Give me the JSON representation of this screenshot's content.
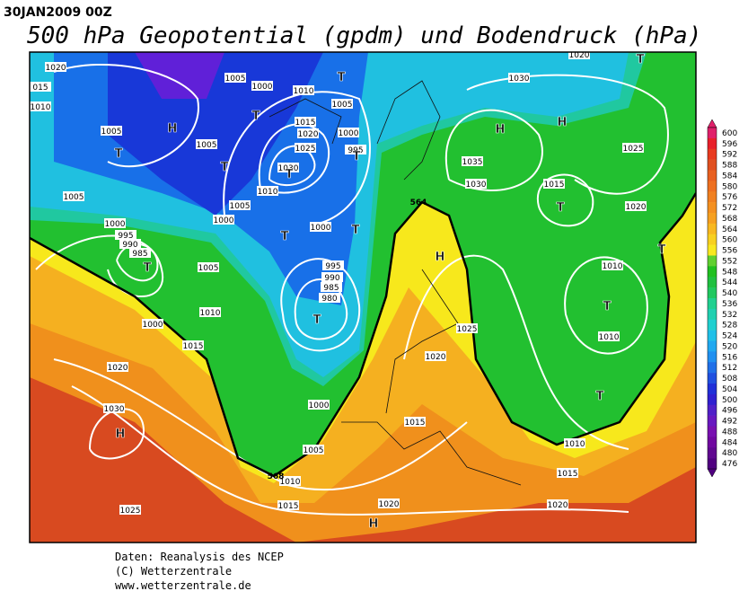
{
  "header": {
    "date": "30JAN2009 00Z",
    "title": "500 hPa Geopotential (gpdm) und Bodendruck (hPa)"
  },
  "map": {
    "pressure_labels": [
      "1020",
      "015",
      "1010",
      "1005",
      "1000",
      "1010",
      "1005",
      "1015",
      "1020",
      "1000",
      "1025",
      "995",
      "1005",
      "1005",
      "1030",
      "1010",
      "1005",
      "1005",
      "1000",
      "1000",
      "1000",
      "995",
      "990",
      "985",
      "1005",
      "995",
      "990",
      "985",
      "980",
      "1010",
      "1000",
      "1015",
      "1020",
      "1000",
      "1030",
      "1005",
      "1010",
      "1015",
      "1025",
      "1020",
      "1015",
      "1025",
      "1020",
      "1030",
      "1035",
      "1030",
      "1015",
      "1025",
      "1020",
      "1010",
      "1010",
      "1010",
      "1015",
      "1020",
      "1020"
    ],
    "contour_labels": [
      "564",
      "568"
    ],
    "centers": [
      "H",
      "T",
      "T",
      "T",
      "T",
      "T",
      "T",
      "T",
      "T",
      "T",
      "T",
      "H",
      "H",
      "H",
      "T",
      "T",
      "T",
      "T",
      "H",
      "H",
      "T"
    ]
  },
  "colorbar": {
    "levels": [
      600,
      596,
      592,
      588,
      584,
      580,
      576,
      572,
      568,
      564,
      560,
      556,
      552,
      548,
      544,
      540,
      536,
      532,
      528,
      524,
      520,
      516,
      512,
      508,
      504,
      500,
      496,
      492,
      488,
      484,
      480,
      476
    ],
    "colors": [
      "#e0206a",
      "#e8202a",
      "#e83a20",
      "#e05020",
      "#e86020",
      "#ee7020",
      "#f08020",
      "#f49020",
      "#f6a020",
      "#f8b820",
      "#f8d020",
      "#f8e820",
      "#60d030",
      "#20c020",
      "#20c040",
      "#20c860",
      "#20d090",
      "#20d0b0",
      "#20d0d0",
      "#20c0e8",
      "#20a8f0",
      "#2090f0",
      "#2070e8",
      "#2050e0",
      "#2030d8",
      "#3020d0",
      "#5020c8",
      "#6818c0",
      "#7810b0",
      "#7008a0",
      "#600890",
      "#500080"
    ]
  },
  "footer": {
    "lines": [
      "Daten: Reanalysis des NCEP",
      "(C) Wetterzentrale",
      "www.wetterzentrale.de"
    ]
  }
}
